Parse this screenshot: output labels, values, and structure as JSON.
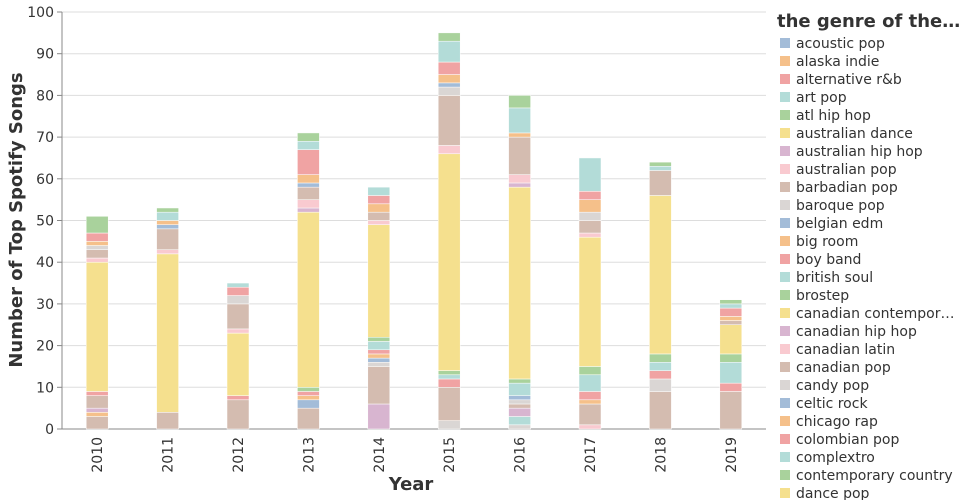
{
  "chart_data": {
    "type": "stacked-bar",
    "x_label": "Year",
    "y_label": "Number of Top Spotify Songs",
    "legend_title": "the genre of the…",
    "categories": [
      "2010",
      "2011",
      "2012",
      "2013",
      "2014",
      "2015",
      "2016",
      "2017",
      "2018",
      "2019"
    ],
    "ylim": [
      0,
      100
    ],
    "yticks": [
      0,
      10,
      20,
      30,
      40,
      50,
      60,
      70,
      80,
      90,
      100
    ],
    "grid": true,
    "legend": "right",
    "series": [
      {
        "name": "acoustic pop",
        "color": "#a3bcd8",
        "values": [
          0,
          0,
          0,
          0,
          0,
          0,
          0,
          0,
          0,
          0
        ]
      },
      {
        "name": "alaska indie",
        "color": "#f5c08a",
        "values": [
          0,
          0,
          0,
          0,
          0,
          0,
          0,
          0,
          0,
          0
        ]
      },
      {
        "name": "alternative r&b",
        "color": "#f0a3a3",
        "values": [
          0,
          0,
          0,
          0,
          0,
          0,
          0,
          0,
          0,
          0
        ]
      },
      {
        "name": "art pop",
        "color": "#b3dcd8",
        "values": [
          0,
          0,
          0,
          0,
          0,
          0,
          0,
          0,
          0,
          0
        ]
      },
      {
        "name": "atl hip hop",
        "color": "#a9d29c",
        "values": [
          0,
          0,
          0,
          0,
          0,
          0,
          0,
          0,
          0,
          0
        ]
      },
      {
        "name": "australian dance",
        "color": "#f5e08e",
        "values": [
          0,
          0,
          0,
          0,
          0,
          0,
          0,
          0,
          0,
          0
        ]
      },
      {
        "name": "australian hip hop",
        "color": "#d8b5d0",
        "values": [
          0,
          0,
          0,
          0,
          0,
          0,
          0,
          0,
          0,
          0
        ]
      },
      {
        "name": "australian pop",
        "color": "#f9cad0",
        "values": [
          0,
          0,
          0,
          0,
          0,
          0,
          0,
          0,
          0,
          0
        ]
      },
      {
        "name": "barbadian pop",
        "color": "#d4bcb0",
        "values": [
          3,
          0,
          0,
          0,
          0,
          0,
          0,
          0,
          0,
          0
        ]
      },
      {
        "name": "baroque pop",
        "color": "#dad6d4",
        "values": [
          0,
          0,
          0,
          0,
          0,
          2,
          1,
          0,
          0,
          0
        ]
      },
      {
        "name": "belgian edm",
        "color": "#a3bcd8",
        "values": [
          0,
          0,
          0,
          0,
          0,
          0,
          0,
          0,
          0,
          0
        ]
      },
      {
        "name": "big room",
        "color": "#f5c08a",
        "values": [
          1,
          0,
          0,
          0,
          0,
          0,
          0,
          0,
          0,
          0
        ]
      },
      {
        "name": "boy band",
        "color": "#f0a3a3",
        "values": [
          0,
          0,
          0,
          0,
          0,
          0,
          0,
          0,
          0,
          0
        ]
      },
      {
        "name": "british soul",
        "color": "#b3dcd8",
        "values": [
          0,
          0,
          0,
          0,
          0,
          0,
          2,
          0,
          0,
          0
        ]
      },
      {
        "name": "brostep",
        "color": "#a9d29c",
        "values": [
          0,
          0,
          0,
          0,
          0,
          0,
          0,
          0,
          0,
          0
        ]
      },
      {
        "name": "canadian contempor…",
        "color": "#f5e08e",
        "values": [
          0,
          0,
          0,
          0,
          0,
          0,
          0,
          0,
          0,
          0
        ]
      },
      {
        "name": "canadian hip hop",
        "color": "#d8b5d0",
        "values": [
          1,
          0,
          0,
          0,
          6,
          0,
          2,
          0,
          0,
          0
        ]
      },
      {
        "name": "canadian latin",
        "color": "#f9cad0",
        "values": [
          0,
          0,
          0,
          0,
          0,
          0,
          0,
          1,
          0,
          0
        ]
      },
      {
        "name": "canadian pop",
        "color": "#d4bcb0",
        "values": [
          3,
          4,
          7,
          5,
          9,
          8,
          1,
          5,
          9,
          9
        ]
      },
      {
        "name": "candy pop",
        "color": "#dad6d4",
        "values": [
          0,
          0,
          0,
          0,
          1,
          0,
          1,
          0,
          3,
          0
        ]
      },
      {
        "name": "celtic rock",
        "color": "#a3bcd8",
        "values": [
          0,
          0,
          0,
          2,
          1,
          0,
          1,
          0,
          0,
          0
        ]
      },
      {
        "name": "chicago rap",
        "color": "#f5c08a",
        "values": [
          0,
          0,
          0,
          1,
          1,
          0,
          0,
          1,
          0,
          0
        ]
      },
      {
        "name": "colombian pop",
        "color": "#f0a3a3",
        "values": [
          1,
          0,
          1,
          1,
          1,
          2,
          0,
          2,
          2,
          2
        ]
      },
      {
        "name": "complextro",
        "color": "#b3dcd8",
        "values": [
          0,
          0,
          0,
          0,
          2,
          1,
          3,
          4,
          2,
          5
        ]
      },
      {
        "name": "contemporary country",
        "color": "#a9d29c",
        "values": [
          0,
          0,
          0,
          1,
          1,
          1,
          1,
          2,
          2,
          2
        ]
      },
      {
        "name": "dance pop",
        "color": "#f5e08e",
        "values": [
          31,
          38,
          15,
          42,
          27,
          52,
          46,
          31,
          38,
          7
        ]
      },
      {
        "name": null,
        "color": "#d8b5d0",
        "values": [
          0,
          0,
          0,
          1,
          0,
          0,
          1,
          0,
          0,
          0
        ]
      },
      {
        "name": null,
        "color": "#f9cad0",
        "values": [
          1,
          1,
          1,
          2,
          1,
          2,
          2,
          1,
          0,
          0
        ]
      },
      {
        "name": null,
        "color": "#d4bcb0",
        "values": [
          2,
          5,
          6,
          3,
          2,
          12,
          9,
          3,
          6,
          1
        ]
      },
      {
        "name": null,
        "color": "#dad6d4",
        "values": [
          1,
          0,
          2,
          0,
          0,
          2,
          0,
          2,
          0,
          0
        ]
      },
      {
        "name": null,
        "color": "#a3bcd8",
        "values": [
          0,
          1,
          0,
          1,
          0,
          1,
          0,
          0,
          0,
          0
        ]
      },
      {
        "name": null,
        "color": "#f5c08a",
        "values": [
          1,
          1,
          0,
          2,
          2,
          2,
          1,
          3,
          0,
          1
        ]
      },
      {
        "name": null,
        "color": "#f0a3a3",
        "values": [
          2,
          0,
          2,
          6,
          2,
          3,
          0,
          2,
          0,
          2
        ]
      },
      {
        "name": null,
        "color": "#b3dcd8",
        "values": [
          0,
          2,
          1,
          2,
          2,
          5,
          6,
          8,
          1,
          1
        ]
      },
      {
        "name": null,
        "color": "#a9d29c",
        "values": [
          4,
          1,
          0,
          2,
          0,
          2,
          3,
          0,
          1,
          1
        ]
      }
    ]
  }
}
